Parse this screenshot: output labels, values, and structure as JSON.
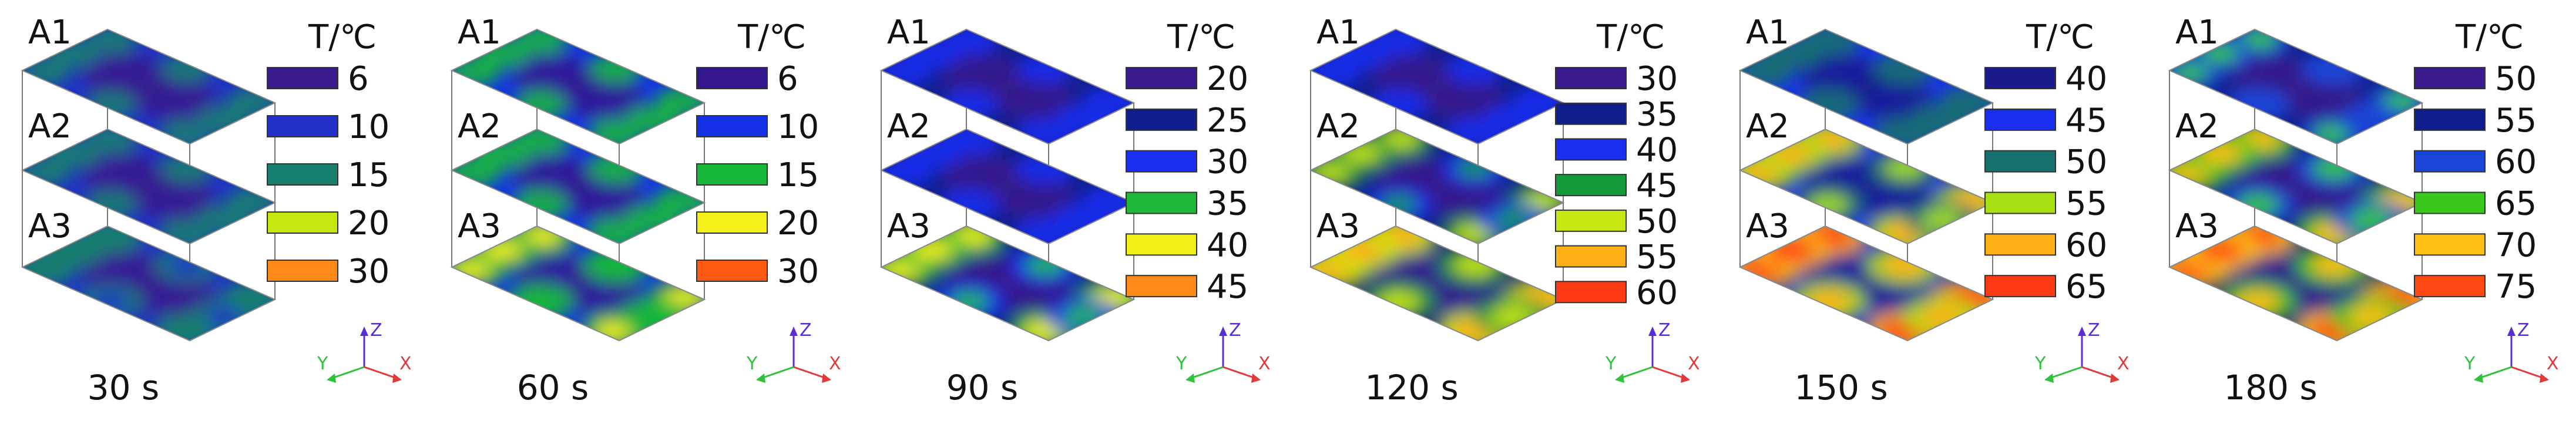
{
  "figure": {
    "layer_labels": [
      "A1",
      "A2",
      "A3"
    ],
    "legend_title": "T/℃",
    "axis_labels": {
      "z": "Z",
      "x": "X",
      "y": "Y"
    },
    "axis_colors": {
      "z": "#5a2bd8",
      "x": "#e23a3a",
      "y": "#2fc23a"
    },
    "panels": [
      {
        "time": "30 s",
        "legend": [
          {
            "label": "6",
            "color": "#3a1a8c"
          },
          {
            "label": "10",
            "color": "#1f2fc8"
          },
          {
            "label": "15",
            "color": "#17806e"
          },
          {
            "label": "20",
            "color": "#c8e60f"
          },
          {
            "label": "30",
            "color": "#ff8a1a"
          }
        ],
        "heat": [
          0.15,
          0.2,
          0.55
        ]
      },
      {
        "time": "60 s",
        "legend": [
          {
            "label": "6",
            "color": "#34178e"
          },
          {
            "label": "10",
            "color": "#1430e6"
          },
          {
            "label": "15",
            "color": "#18b83a"
          },
          {
            "label": "20",
            "color": "#f5f01a"
          },
          {
            "label": "30",
            "color": "#ff5a14"
          }
        ],
        "heat": [
          0.2,
          0.3,
          0.65
        ]
      },
      {
        "time": "90 s",
        "legend": [
          {
            "label": "20",
            "color": "#3a1a8c"
          },
          {
            "label": "25",
            "color": "#0f1e8c"
          },
          {
            "label": "30",
            "color": "#1a2ef0"
          },
          {
            "label": "35",
            "color": "#20b83a"
          },
          {
            "label": "40",
            "color": "#f2f014"
          },
          {
            "label": "45",
            "color": "#ff8a1a"
          }
        ],
        "heat": [
          0.3,
          0.4,
          0.75
        ]
      },
      {
        "time": "120 s",
        "legend": [
          {
            "label": "30",
            "color": "#3a1a8c"
          },
          {
            "label": "35",
            "color": "#0f1e8c"
          },
          {
            "label": "40",
            "color": "#1a2ef0"
          },
          {
            "label": "45",
            "color": "#149a3a"
          },
          {
            "label": "50",
            "color": "#c8e60f"
          },
          {
            "label": "55",
            "color": "#ffb014"
          },
          {
            "label": "60",
            "color": "#ff3a14"
          }
        ],
        "heat": [
          0.35,
          0.6,
          0.85
        ]
      },
      {
        "time": "150 s",
        "legend": [
          {
            "label": "40",
            "color": "#1a1a8c"
          },
          {
            "label": "45",
            "color": "#1a2ef0"
          },
          {
            "label": "50",
            "color": "#16706e"
          },
          {
            "label": "55",
            "color": "#a8e014"
          },
          {
            "label": "60",
            "color": "#ffb014"
          },
          {
            "label": "65",
            "color": "#ff3a14"
          }
        ],
        "heat": [
          0.45,
          0.75,
          0.9
        ]
      },
      {
        "time": "180 s",
        "legend": [
          {
            "label": "50",
            "color": "#3a1a8c"
          },
          {
            "label": "55",
            "color": "#0f1e8c"
          },
          {
            "label": "60",
            "color": "#1a46d8"
          },
          {
            "label": "65",
            "color": "#3ac81e"
          },
          {
            "label": "70",
            "color": "#ffc014"
          },
          {
            "label": "75",
            "color": "#ff4a14"
          }
        ],
        "heat": [
          0.55,
          0.85,
          0.95
        ]
      }
    ]
  }
}
